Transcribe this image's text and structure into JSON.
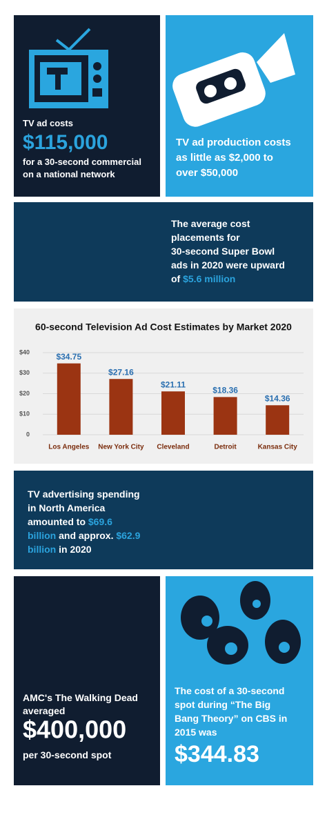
{
  "panels": {
    "tv_cost": {
      "lines": [
        [
          {
            "t": "TV ad costs"
          }
        ]
      ],
      "amount": "$115,000",
      "caption": [
        [
          {
            "t": "for a 30-second commercial"
          }
        ],
        [
          {
            "t": "on a national network"
          }
        ]
      ]
    },
    "production": {
      "lines": [
        [
          {
            "t": "TV ad production costs"
          }
        ],
        [
          {
            "t": "as little as "
          },
          {
            "t": "$2,000",
            "hl": true
          },
          {
            "t": " to"
          }
        ],
        [
          {
            "t": "over "
          },
          {
            "t": "$50,000",
            "hl": true
          }
        ]
      ]
    },
    "super_bowl": {
      "lines": [
        [
          {
            "t": "The average cost"
          }
        ],
        [
          {
            "t": "placements for"
          }
        ],
        [
          {
            "t": "30-second Super Bowl"
          }
        ],
        [
          {
            "t": "ads in 2020 were upward"
          }
        ],
        [
          {
            "t": "of "
          },
          {
            "t": "$5.6 million",
            "hl": true
          }
        ]
      ]
    },
    "spending": {
      "lines": [
        [
          {
            "t": "TV advertising spending"
          }
        ],
        [
          {
            "t": "in North America"
          }
        ],
        [
          {
            "t": "amounted to "
          },
          {
            "t": "$69.6",
            "hl": true
          }
        ],
        [
          {
            "t": "billion",
            "hl": true
          },
          {
            "t": " and approx. "
          },
          {
            "t": "$62.9",
            "hl": true
          }
        ],
        [
          {
            "t": "billion",
            "hl": true
          },
          {
            "t": " in 2020"
          }
        ]
      ]
    },
    "walking_dead": {
      "lines": [
        [
          {
            "t": "AMC's The Walking Dead"
          }
        ],
        [
          {
            "t": "averaged"
          }
        ]
      ],
      "amount": "$400,000",
      "caption": [
        [
          {
            "t": "per 30-second spot"
          }
        ]
      ]
    },
    "big_bang": {
      "lines": [
        [
          {
            "t": "The cost of a 30-second"
          }
        ],
        [
          {
            "t": "spot during “The Big"
          }
        ],
        [
          {
            "t": "Bang Theory” on CBS in"
          }
        ],
        [
          {
            "t": "2015 was"
          }
        ]
      ],
      "amount": "$344.83"
    }
  },
  "chart_data": {
    "type": "bar",
    "title": "60-second Television Ad Cost Estimates by Market 2020",
    "categories": [
      "Los Angeles",
      "New York City",
      "Cleveland",
      "Detroit",
      "Kansas City"
    ],
    "values": [
      34.75,
      27.16,
      21.11,
      18.36,
      14.36
    ],
    "value_labels": [
      "$34.75",
      "$27.16",
      "$21.11",
      "$18.36",
      "$14.36"
    ],
    "color": "#9b3412",
    "ylim": [
      0,
      40
    ],
    "yticks": [
      0,
      {
        "value": 10,
        "label": "$10"
      },
      {
        "value": 20,
        "label": "$20"
      },
      {
        "value": 30,
        "label": "$30"
      },
      {
        "value": 40,
        "label": "$40"
      }
    ],
    "grid": true
  }
}
